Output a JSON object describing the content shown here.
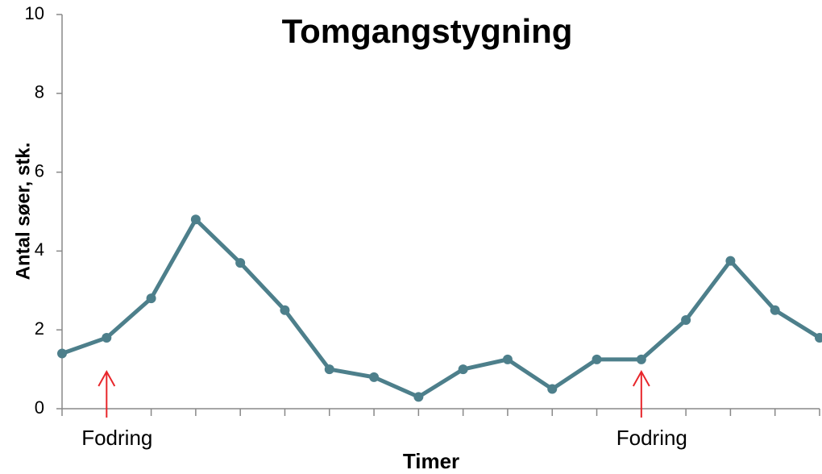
{
  "chart_data": {
    "type": "line",
    "title": "Tomgangstygning",
    "xlabel": "Timer",
    "ylabel": "Antal søer, stk.",
    "categories": [
      null,
      null,
      null,
      null,
      null,
      null,
      null,
      null,
      null,
      null,
      null,
      null,
      null,
      null,
      null,
      null,
      null,
      null
    ],
    "series": [
      {
        "name": null,
        "color": "#4d7f8b",
        "values": [
          1.4,
          1.8,
          2.8,
          4.8,
          3.7,
          2.5,
          1.0,
          0.8,
          0.3,
          1.0,
          1.25,
          0.5,
          1.25,
          1.25,
          2.25,
          3.75,
          2.5,
          1.8
        ]
      }
    ],
    "ylim": [
      0,
      10
    ],
    "yticks": [
      0,
      2,
      4,
      6,
      8,
      10
    ],
    "grid": false,
    "annotations": [
      {
        "text": "Fodring",
        "at": 1,
        "color": "#e8262b"
      },
      {
        "text": "Fodring",
        "at": 13,
        "color": "#e8262b"
      }
    ]
  }
}
